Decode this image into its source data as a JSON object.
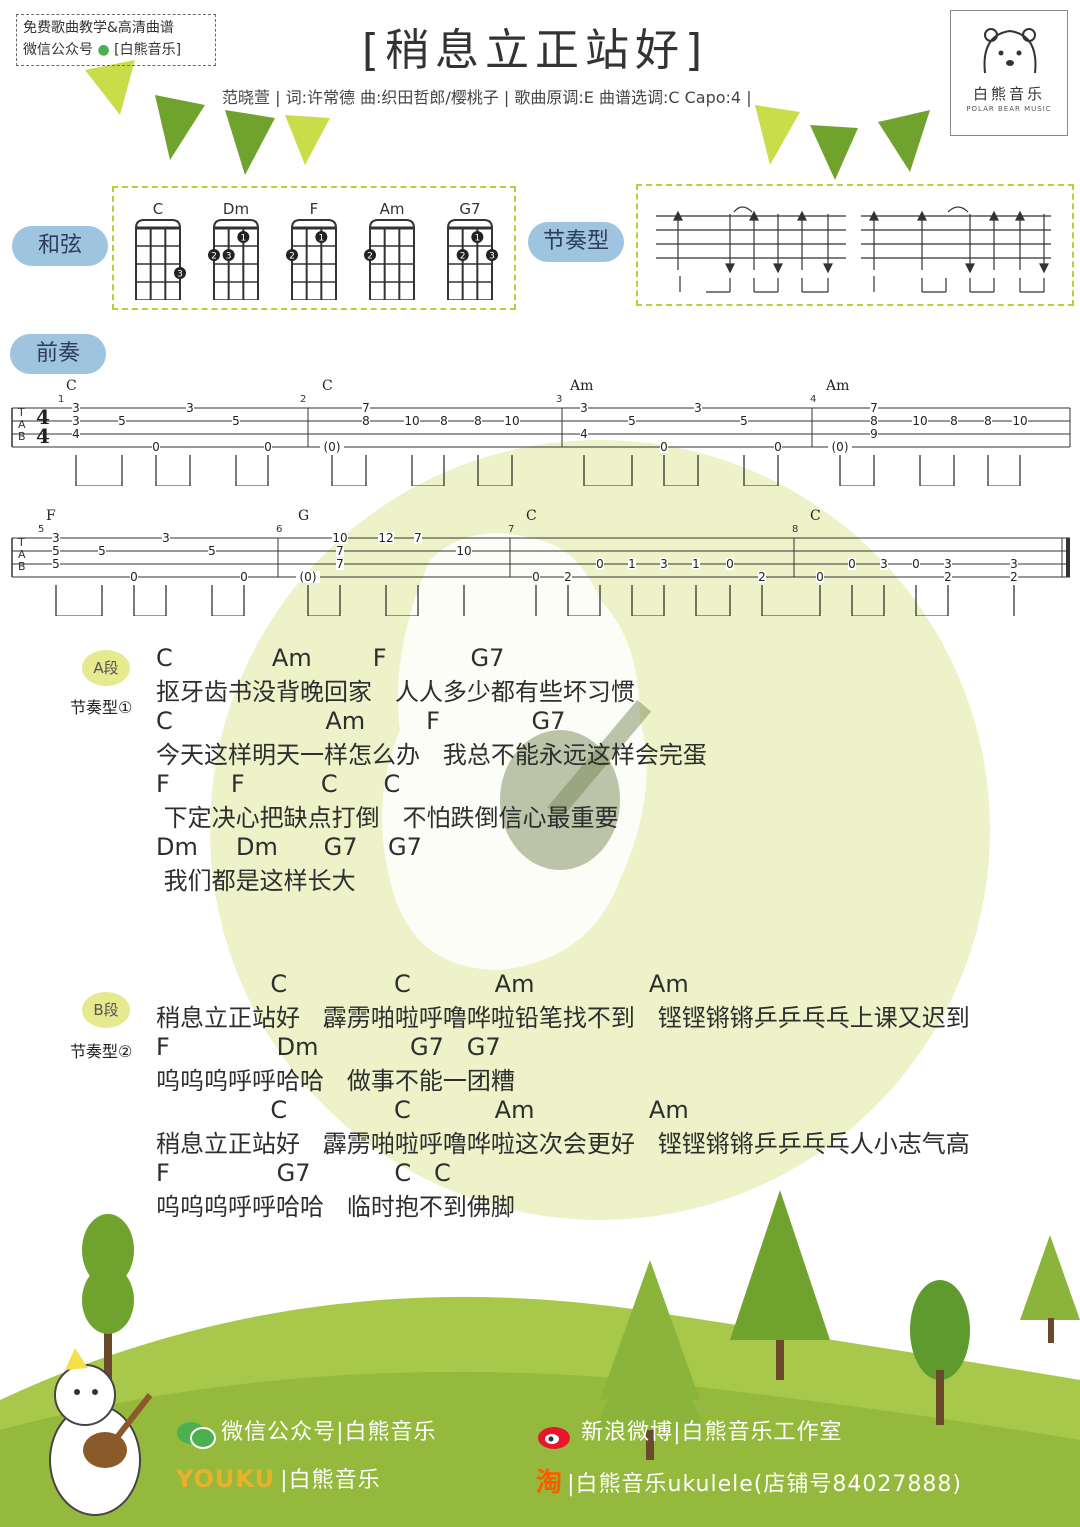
{
  "header": {
    "promo_line1": "免费歌曲教学&高清曲谱",
    "promo_line2": "微信公众号",
    "promo_line2b": "[白熊音乐]",
    "title": "[稍息立正站好]",
    "subtitle": "范晓萱 | 词:许常德 曲:织田哲郎/樱桃子 | 歌曲原调:E 曲谱选调:C Capo:4 |",
    "logo_name": "白熊音乐",
    "logo_sub": "POLAR BEAR MUSIC"
  },
  "labels": {
    "chords": "和弦",
    "rhythm": "节奏型",
    "intro": "前奏"
  },
  "chords": [
    {
      "name": "C",
      "dots": [
        {
          "string": 4,
          "fret": 3,
          "finger": "3"
        }
      ]
    },
    {
      "name": "Dm",
      "dots": [
        {
          "string": 1,
          "fret": 2,
          "finger": "2"
        },
        {
          "string": 2,
          "fret": 2,
          "finger": "3"
        },
        {
          "string": 3,
          "fret": 1,
          "finger": "1"
        }
      ]
    },
    {
      "name": "F",
      "dots": [
        {
          "string": 1,
          "fret": 2,
          "finger": "2"
        },
        {
          "string": 3,
          "fret": 1,
          "finger": "1"
        }
      ]
    },
    {
      "name": "Am",
      "dots": [
        {
          "string": 1,
          "fret": 2,
          "finger": "2"
        }
      ]
    },
    {
      "name": "G7",
      "dots": [
        {
          "string": 2,
          "fret": 2,
          "finger": "2"
        },
        {
          "string": 3,
          "fret": 1,
          "finger": "1"
        },
        {
          "string": 4,
          "fret": 2,
          "finger": "3"
        }
      ]
    }
  ],
  "tab": {
    "row1": {
      "measures": [
        "1",
        "2",
        "3",
        "4"
      ],
      "chords": [
        "C",
        "C",
        "Am",
        "Am"
      ],
      "numbers": [
        "3",
        "3",
        "4",
        "5",
        "0",
        "3",
        "5",
        "0",
        "(0)",
        "7",
        "8",
        "10",
        "8",
        "8",
        "10",
        "3",
        "5",
        "4",
        "5",
        "0",
        "3",
        "5",
        "0",
        "(0)",
        "7",
        "8",
        "9",
        "10",
        "8",
        "8",
        "10"
      ]
    },
    "row2": {
      "measures": [
        "5",
        "6",
        "7",
        "8"
      ],
      "chords": [
        "F",
        "G",
        "C",
        "C"
      ],
      "numbers": [
        "3",
        "5",
        "5",
        "5",
        "0",
        "3",
        "5",
        "0",
        "(0)",
        "10",
        "7",
        "7",
        "12",
        "7",
        "10",
        "0",
        "2",
        "0",
        "1",
        "3",
        "1",
        "0",
        "2",
        "0",
        "0",
        "3",
        "0",
        "3",
        "2",
        "3",
        "2"
      ]
    }
  },
  "section_a": {
    "badge": "A段",
    "rhythm": "节奏型①",
    "lines": [
      {
        "chords": "C             Am        F           G7",
        "lyrics": "抠牙齿书没背晚回家   人人多少都有些坏习惯"
      },
      {
        "chords": "C                    Am        F            G7",
        "lyrics": "今天这样明天一样怎么办   我总不能永远这样会完蛋"
      },
      {
        "chords": "F        F          C      C",
        "lyrics": " 下定决心把缺点打倒   不怕跌倒信心最重要"
      },
      {
        "chords": "Dm     Dm      G7    G7",
        "lyrics": " 我们都是这样长大"
      }
    ]
  },
  "section_b": {
    "badge": "B段",
    "rhythm": "节奏型②",
    "lines": [
      {
        "chords": "               C              C           Am               Am",
        "lyrics": "稍息立正站好   霹雳啪啦呼噜哗啦铅笔找不到   铿铿锵锵乒乒乓乓上课又迟到"
      },
      {
        "chords": "F              Dm            G7   G7",
        "lyrics": "呜呜呜呼呼哈哈   做事不能一团糟"
      },
      {
        "chords": "               C              C           Am               Am",
        "lyrics": "稍息立正站好   霹雳啪啦呼噜哗啦这次会更好   铿铿锵锵乒乒乓乓人小志气高"
      },
      {
        "chords": "F              G7           C   C",
        "lyrics": "呜呜呜呼呼哈哈   临时抱不到佛脚"
      }
    ]
  },
  "footer": {
    "wechat": "微信公众号|白熊音乐",
    "weibo": "新浪微博|白熊音乐工作室",
    "youku_logo": "YOUKU",
    "youku_text": "|白熊音乐",
    "taobao_logo": "淘",
    "taobao_text": "|白熊音乐ukulele(店铺号84027888)"
  },
  "watermark": "白熊音乐",
  "colors": {
    "green_dark": "#6fa32e",
    "green_light": "#c9dc4a",
    "hill": "#a7c84a",
    "bubble": "#9ec4e0",
    "box_border": "#b8cf3c",
    "circle": "#eef2c9"
  },
  "icons": [
    "wechat-icon",
    "weibo-icon",
    "youku-logo",
    "taobao-icon",
    "bear-icon",
    "tree-icon"
  ]
}
